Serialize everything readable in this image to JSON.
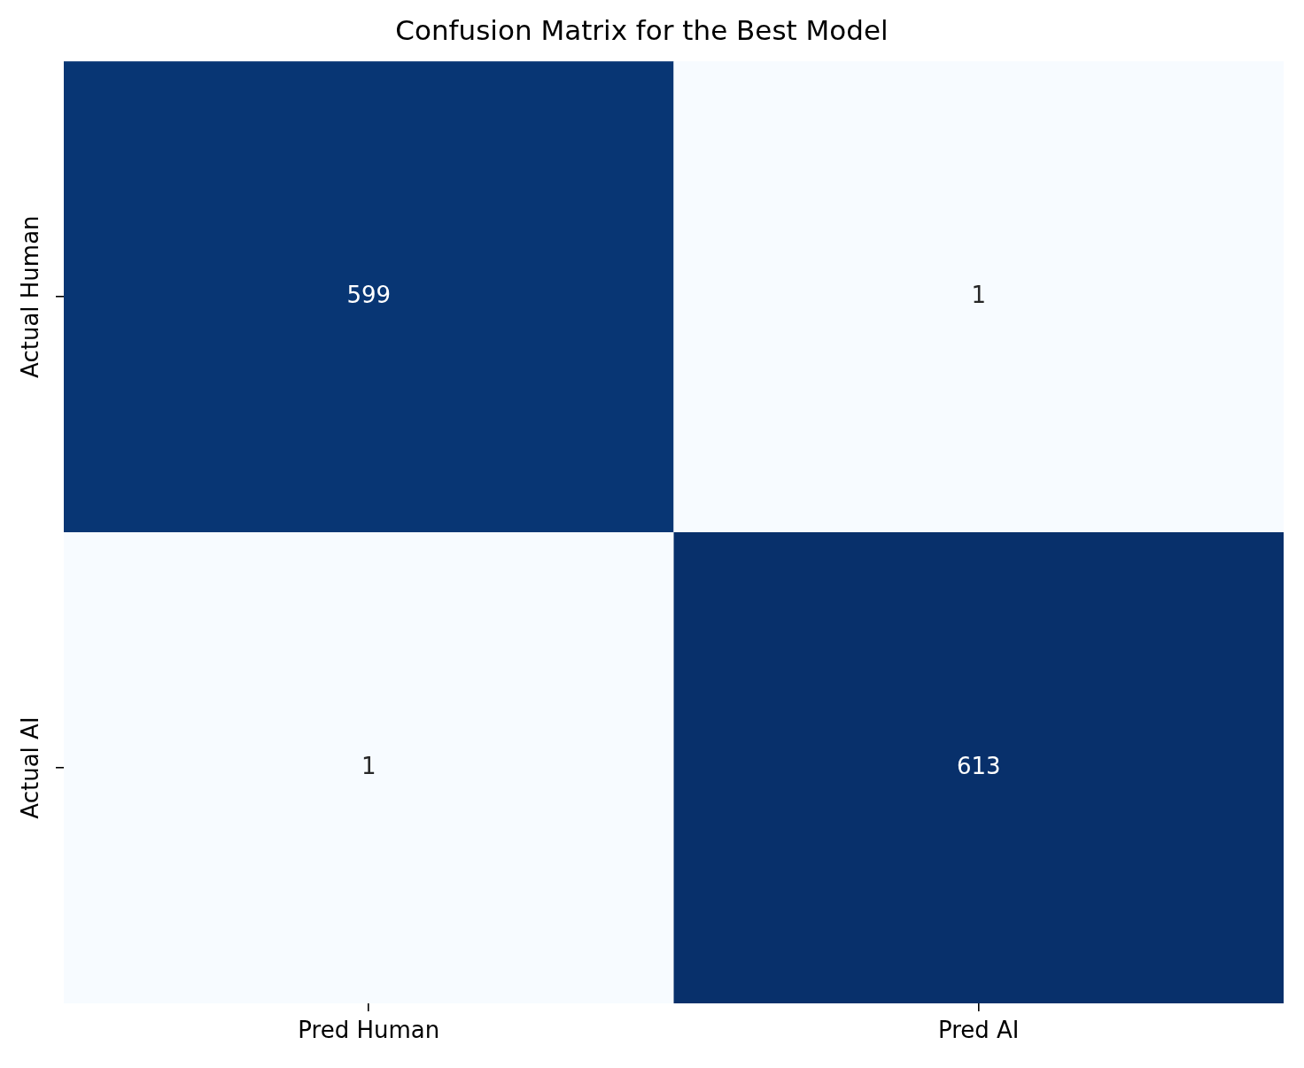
{
  "chart_data": {
    "type": "heatmap",
    "title": "Confusion Matrix for the Best Model",
    "categories": [
      "Pred Human",
      "Pred AI"
    ],
    "y_categories": [
      "Actual Human",
      "Actual AI"
    ],
    "cells": [
      [
        599,
        1
      ],
      [
        1,
        613
      ]
    ],
    "data_labels": true
  }
}
